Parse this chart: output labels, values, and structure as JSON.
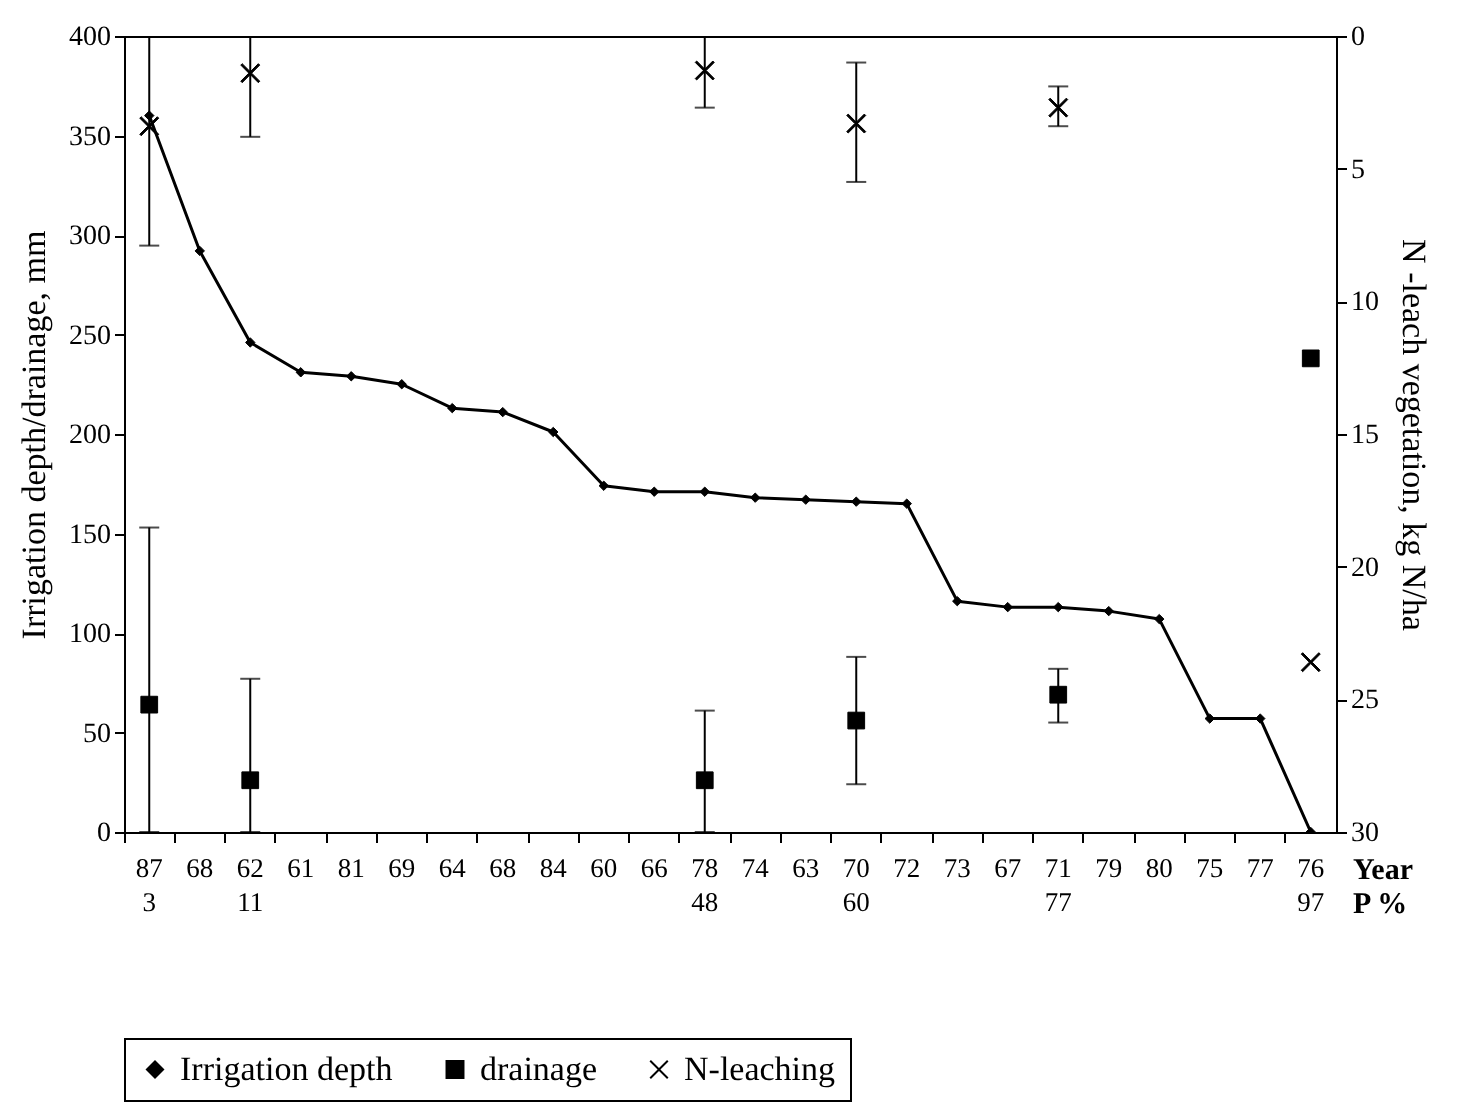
{
  "chart_data": {
    "type": "line",
    "categories": [
      "87\n3",
      "68",
      "62\n11",
      "61",
      "81",
      "69",
      "64",
      "68",
      "84",
      "60",
      "66",
      "78\n48",
      "74",
      "63",
      "70\n60",
      "72",
      "73",
      "67",
      "71\n77",
      "79",
      "80",
      "75",
      "77",
      "76\n97"
    ],
    "xlabel": "Year\nP %",
    "ylabel": "Irrigation depth/drainage,  mm",
    "y2label": "N -leach vegetation, kg N/ha",
    "ylim": [
      0,
      400
    ],
    "yticks": [
      0,
      50,
      100,
      150,
      200,
      250,
      300,
      350,
      400
    ],
    "y2lim": [
      30,
      0
    ],
    "y2ticks": [
      0,
      5,
      10,
      15,
      20,
      25,
      30
    ],
    "grid": false,
    "legend": "bottom",
    "series": [
      {
        "name": "Irrigation depth",
        "type": "line",
        "marker": "diamond",
        "color": "#000000",
        "values": [
          360,
          292,
          246,
          231,
          229,
          225,
          213,
          211,
          201,
          174,
          171,
          171,
          168,
          167,
          166,
          165,
          116,
          113,
          113,
          111,
          107,
          57,
          57,
          0
        ]
      },
      {
        "name": "drainage",
        "type": "scatter",
        "marker": "square",
        "color": "#000000",
        "values": [
          64,
          null,
          26,
          null,
          null,
          null,
          null,
          null,
          null,
          null,
          null,
          26,
          null,
          null,
          56,
          null,
          null,
          null,
          69,
          null,
          null,
          null,
          null,
          238
        ],
        "errors": [
          [
            0,
            153
          ],
          null,
          [
            0,
            77
          ],
          null,
          null,
          null,
          null,
          null,
          null,
          null,
          null,
          [
            0,
            61
          ],
          null,
          null,
          [
            24,
            88
          ],
          null,
          null,
          null,
          [
            55,
            82
          ],
          null,
          null,
          null,
          null,
          null
        ]
      },
      {
        "name": "N-leaching",
        "type": "scatter",
        "marker": "cross",
        "axis": "y2",
        "color": "#000000",
        "values": [
          3.4,
          null,
          1.4,
          null,
          null,
          null,
          null,
          null,
          null,
          null,
          null,
          1.3,
          null,
          null,
          3.3,
          null,
          null,
          null,
          2.7,
          null,
          null,
          null,
          null,
          23.6
        ],
        "errors": [
          [
            0,
            7.9
          ],
          null,
          [
            0,
            3.8
          ],
          null,
          null,
          null,
          null,
          null,
          null,
          null,
          null,
          [
            0,
            2.7
          ],
          null,
          null,
          [
            1.0,
            5.5
          ],
          null,
          null,
          null,
          [
            1.9,
            3.4
          ],
          null,
          null,
          null,
          null,
          null
        ]
      }
    ]
  }
}
